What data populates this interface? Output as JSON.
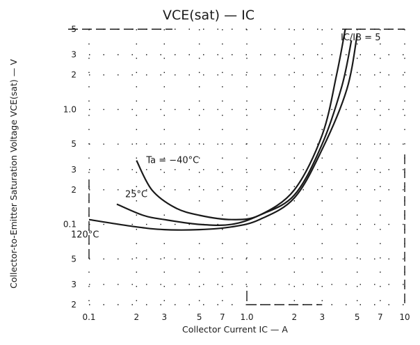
{
  "chart_data": {
    "type": "line",
    "title": "VCE(sat) — IC",
    "condition": "IC/IB = 5",
    "xlabel": "Collector Current IC — A",
    "ylabel": "Collector-to-Emitter Saturation Voltage VCE(sat) — V",
    "x_scale": "log",
    "y_scale": "log",
    "xlim": [
      0.1,
      10
    ],
    "ylim": [
      0.02,
      5
    ],
    "x_tick_labels": [
      {
        "v": 0.1,
        "t": "0.1"
      },
      {
        "v": 0.2,
        "t": "2"
      },
      {
        "v": 0.3,
        "t": "3"
      },
      {
        "v": 0.5,
        "t": "5"
      },
      {
        "v": 0.7,
        "t": "7"
      },
      {
        "v": 1,
        "t": "1.0"
      },
      {
        "v": 2,
        "t": "2"
      },
      {
        "v": 3,
        "t": "3"
      },
      {
        "v": 5,
        "t": "5"
      },
      {
        "v": 7,
        "t": "7"
      },
      {
        "v": 10,
        "t": "10"
      }
    ],
    "y_tick_labels": [
      {
        "v": 0.02,
        "t": "2"
      },
      {
        "v": 0.03,
        "t": "3"
      },
      {
        "v": 0.05,
        "t": "5"
      },
      {
        "v": 0.1,
        "t": "0.1"
      },
      {
        "v": 0.2,
        "t": "2"
      },
      {
        "v": 0.3,
        "t": "3"
      },
      {
        "v": 0.5,
        "t": "5"
      },
      {
        "v": 1,
        "t": "1.0"
      },
      {
        "v": 2,
        "t": "2"
      },
      {
        "v": 3,
        "t": "3"
      },
      {
        "v": 5,
        "t": "5"
      }
    ],
    "series": [
      {
        "name": "Ta = −40°C",
        "x": [
          0.2,
          0.25,
          0.35,
          0.5,
          0.8,
          1.2,
          2,
          3,
          3.7,
          4.2
        ],
        "y": [
          0.36,
          0.2,
          0.14,
          0.12,
          0.11,
          0.12,
          0.2,
          0.6,
          2,
          5
        ]
      },
      {
        "name": "25°C",
        "x": [
          0.15,
          0.22,
          0.3,
          0.5,
          0.8,
          1.2,
          2,
          3,
          4,
          4.6
        ],
        "y": [
          0.15,
          0.12,
          0.11,
          0.1,
          0.1,
          0.12,
          0.18,
          0.5,
          1.6,
          4
        ]
      },
      {
        "name": "120°C",
        "x": [
          0.1,
          0.2,
          0.3,
          0.5,
          0.8,
          1.2,
          2,
          3,
          4.3,
          5
        ],
        "y": [
          0.11,
          0.095,
          0.09,
          0.09,
          0.095,
          0.11,
          0.17,
          0.45,
          1.5,
          4.5
        ]
      }
    ]
  }
}
